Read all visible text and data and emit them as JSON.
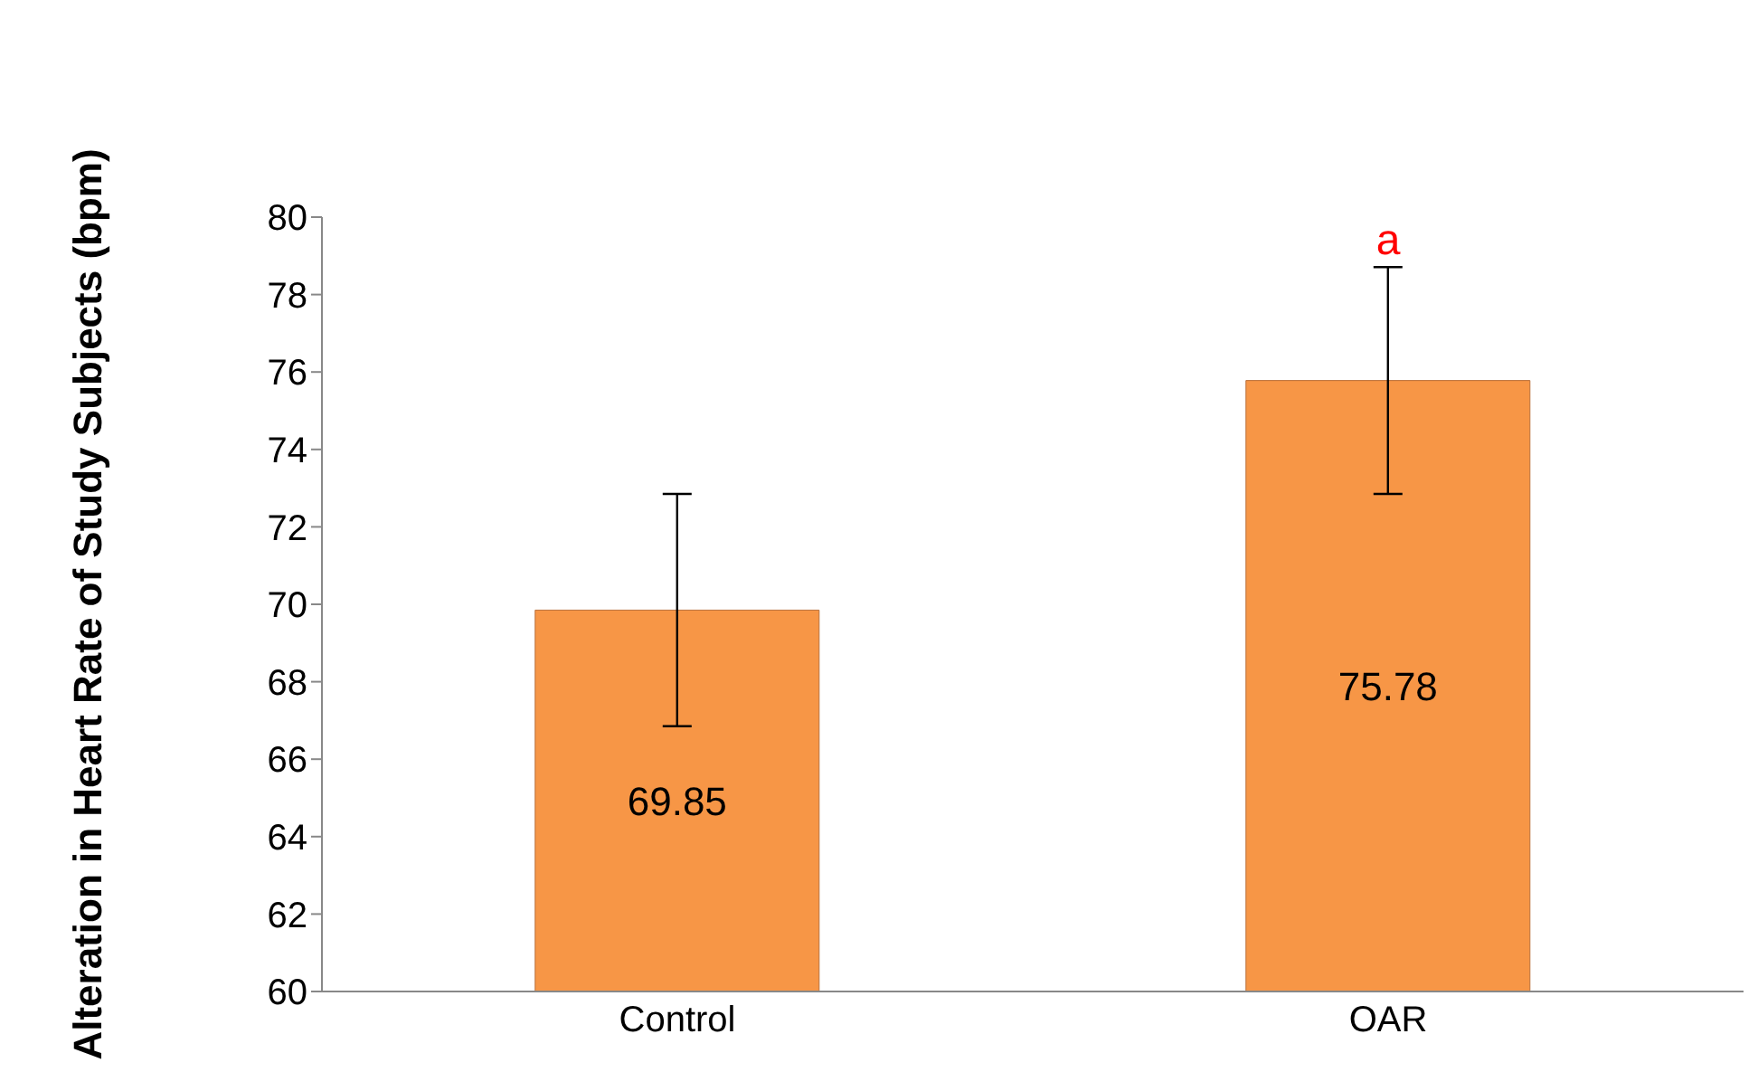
{
  "chart_data": {
    "type": "bar",
    "ylabel": "Alteration in Heart Rate of Study Subjects (bpm)",
    "categories": [
      "Control",
      "OAR"
    ],
    "values": [
      69.85,
      75.78
    ],
    "errors": [
      3,
      2.93
    ],
    "color": "#f79646",
    "data_labels": true,
    "ylim": [
      60,
      80
    ],
    "yticks": [
      60,
      62,
      64,
      66,
      68,
      70,
      72,
      74,
      76,
      78,
      80
    ],
    "grid": false,
    "legend": false,
    "annotations": [
      "a"
    ]
  }
}
